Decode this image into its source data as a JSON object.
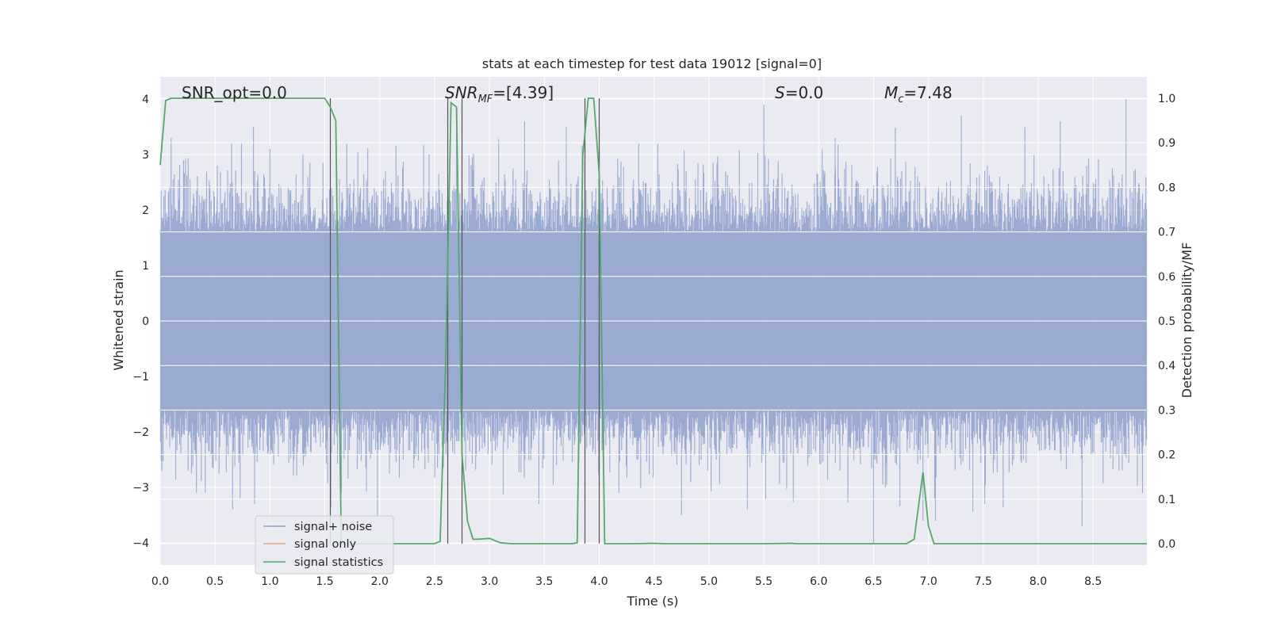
{
  "chart_data": {
    "type": "line",
    "title": "stats at each timestep for test data 19012 [signal=0]",
    "xlabel": "Time (s)",
    "ylabel": "Whitened strain",
    "y2label": "Detection probability/MF",
    "xlim": [
      0.0,
      8.99
    ],
    "ylim": [
      -4.4,
      4.4
    ],
    "y2lim": [
      -0.048,
      1.048
    ],
    "xticks": [
      "0.0",
      "0.5",
      "1.0",
      "1.5",
      "2.0",
      "2.5",
      "3.0",
      "3.5",
      "4.0",
      "4.5",
      "5.0",
      "5.5",
      "6.0",
      "6.5",
      "7.0",
      "7.5",
      "8.0",
      "8.5"
    ],
    "yticks": [
      "4",
      "3",
      "2",
      "1",
      "0",
      "−1",
      "−2",
      "−3",
      "−4"
    ],
    "y2ticks": [
      "1.0",
      "0.9",
      "0.8",
      "0.7",
      "0.6",
      "0.5",
      "0.4",
      "0.3",
      "0.2",
      "0.1",
      "0.0"
    ],
    "grid": true,
    "legend_position": "lower-left",
    "annotations": {
      "snr_opt": "SNR_opt=0.0",
      "snr_mf_main": "SNR",
      "snr_mf_sub": "MF",
      "snr_mf_value": "=[4.39]",
      "s_main": "S",
      "s_value": "=0.0",
      "mc_main": "M",
      "mc_sub": "c",
      "mc_value": "=7.48"
    },
    "series": [
      {
        "name": "signal+ noise",
        "color": "#8c9fcb",
        "style": "noise",
        "duration": 8.99,
        "envelope_typical": 1.6,
        "envelope_peak": 3.6,
        "peak_values": [
          {
            "t": 0.1,
            "y": 3.3
          },
          {
            "t": 0.52,
            "y": 2.8
          },
          {
            "t": 0.74,
            "y": 3.2
          },
          {
            "t": 0.85,
            "y": 3.5
          },
          {
            "t": 1.0,
            "y": 3.1
          },
          {
            "t": 1.3,
            "y": 3.0
          },
          {
            "t": 1.7,
            "y": 3.2
          },
          {
            "t": 2.45,
            "y": 3.0
          },
          {
            "t": 2.7,
            "y": 3.4
          },
          {
            "t": 3.32,
            "y": 3.6
          },
          {
            "t": 3.7,
            "y": 3.5
          },
          {
            "t": 4.36,
            "y": 3.2
          },
          {
            "t": 5.5,
            "y": 3.9
          },
          {
            "t": 6.15,
            "y": 3.3
          },
          {
            "t": 7.3,
            "y": 3.7
          },
          {
            "t": 8.2,
            "y": 3.6
          },
          {
            "t": 8.8,
            "y": 4.0
          }
        ],
        "trough_values": [
          {
            "t": 0.33,
            "y": -3.1
          },
          {
            "t": 0.66,
            "y": -3.4
          },
          {
            "t": 0.86,
            "y": -3.3
          },
          {
            "t": 1.65,
            "y": -3.1
          },
          {
            "t": 1.98,
            "y": -3.5
          },
          {
            "t": 3.45,
            "y": -3.3
          },
          {
            "t": 4.18,
            "y": -3.1
          },
          {
            "t": 4.75,
            "y": -3.5
          },
          {
            "t": 5.35,
            "y": -3.4
          },
          {
            "t": 6.5,
            "y": -4.0
          },
          {
            "t": 6.95,
            "y": -3.6
          },
          {
            "t": 8.4,
            "y": -3.7
          },
          {
            "t": 8.95,
            "y": -3.1
          }
        ]
      },
      {
        "name": "signal only",
        "color": "#dd8452",
        "style": "line",
        "t": [],
        "y": []
      },
      {
        "name": "signal statistics",
        "color": "#55a868",
        "style": "line",
        "t": [
          0.0,
          0.05,
          0.1,
          0.2,
          0.5,
          1.0,
          1.5,
          1.55,
          1.6,
          1.65,
          1.7,
          2.0,
          2.5,
          2.55,
          2.6,
          2.65,
          2.7,
          2.75,
          2.8,
          2.85,
          2.9,
          3.0,
          3.1,
          3.2,
          3.5,
          3.75,
          3.8,
          3.85,
          3.9,
          3.95,
          4.0,
          4.05,
          4.1,
          4.15,
          4.2,
          4.3,
          4.5,
          4.6,
          5.0,
          5.5,
          5.75,
          5.8,
          6.0,
          6.5,
          6.8,
          6.87,
          6.95,
          7.0,
          7.05,
          7.1,
          7.5,
          8.0,
          8.5,
          8.99
        ],
        "y": [
          0.85,
          0.995,
          1.0,
          1.0,
          1.0,
          1.0,
          1.0,
          0.98,
          0.95,
          0.0,
          0.0,
          0.0,
          0.0,
          0.005,
          0.4,
          0.99,
          0.98,
          0.2,
          0.05,
          0.01,
          0.01,
          0.012,
          0.002,
          0.0,
          0.0,
          0.0,
          0.002,
          0.87,
          1.0,
          1.0,
          0.83,
          0.0,
          0.0,
          0.0,
          0.0,
          0.0,
          0.001,
          0.0,
          0.0,
          0.0,
          0.001,
          0.0,
          0.0,
          0.0,
          0.0,
          0.01,
          0.16,
          0.04,
          0.0,
          0.0,
          0.0,
          0.0,
          0.0,
          0.0
        ]
      }
    ],
    "vertical_markers": [
      1.55,
      2.62,
      2.75,
      3.87,
      4.0
    ]
  }
}
